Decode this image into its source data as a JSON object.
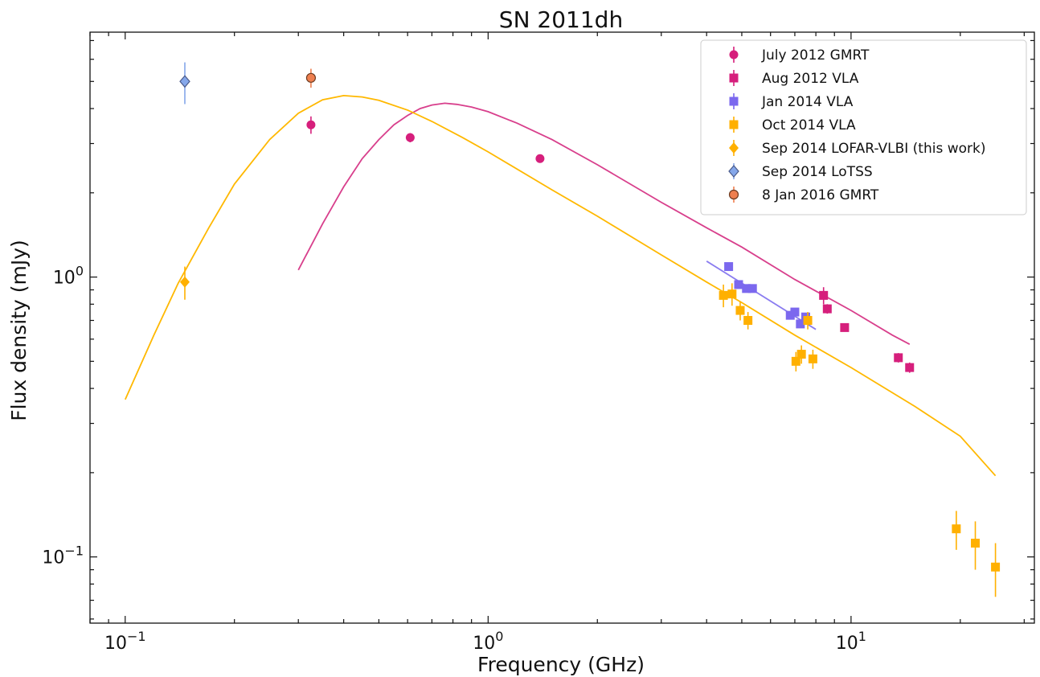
{
  "chart_data": {
    "type": "scatter",
    "title": "SN 2011dh",
    "xlabel": "Frequency (GHz)",
    "ylabel": "Flux density (mJy)",
    "xscale": "log",
    "yscale": "log",
    "xlim": [
      0.08,
      32
    ],
    "ylim": [
      0.058,
      7.5
    ],
    "x_ticks": [
      {
        "value": 0.1,
        "base": "10",
        "exp": "−1"
      },
      {
        "value": 1,
        "base": "10",
        "exp": "0"
      },
      {
        "value": 10,
        "base": "10",
        "exp": "1"
      }
    ],
    "y_ticks": [
      {
        "value": 0.1,
        "base": "10",
        "exp": "−1"
      },
      {
        "value": 1,
        "base": "10",
        "exp": "0"
      }
    ],
    "legend_position": "top-right",
    "series": [
      {
        "name": "July 2012 GMRT",
        "marker": "circle",
        "color": "#d61f7c",
        "points": [
          {
            "x": 0.325,
            "y": 3.5,
            "err": 0.25
          },
          {
            "x": 0.61,
            "y": 3.15,
            "err": 0.12
          },
          {
            "x": 1.39,
            "y": 2.65,
            "err": 0.08
          }
        ]
      },
      {
        "name": "Aug 2012 VLA",
        "marker": "square",
        "color": "#d61f7c",
        "points": [
          {
            "x": 8.4,
            "y": 0.86,
            "err": 0.06
          },
          {
            "x": 8.6,
            "y": 0.77,
            "err": 0.03
          },
          {
            "x": 9.6,
            "y": 0.66,
            "err": 0.02
          },
          {
            "x": 13.5,
            "y": 0.515,
            "err": 0.02
          },
          {
            "x": 14.5,
            "y": 0.475,
            "err": 0.02
          }
        ]
      },
      {
        "name": "Jan 2014 VLA",
        "marker": "square",
        "color": "#7b68ee",
        "points": [
          {
            "x": 4.6,
            "y": 1.09,
            "err": 0.02
          },
          {
            "x": 4.9,
            "y": 0.94,
            "err": 0.02
          },
          {
            "x": 5.15,
            "y": 0.91,
            "err": 0.02
          },
          {
            "x": 5.35,
            "y": 0.91,
            "err": 0.02
          },
          {
            "x": 6.8,
            "y": 0.73,
            "err": 0.02
          },
          {
            "x": 7.0,
            "y": 0.75,
            "err": 0.02
          },
          {
            "x": 7.25,
            "y": 0.68,
            "err": 0.02
          },
          {
            "x": 7.5,
            "y": 0.72,
            "err": 0.02
          }
        ]
      },
      {
        "name": "Oct 2014 VLA",
        "marker": "square",
        "color": "#ffb000",
        "points": [
          {
            "x": 4.45,
            "y": 0.86,
            "err": 0.08
          },
          {
            "x": 4.7,
            "y": 0.87,
            "err": 0.08
          },
          {
            "x": 4.95,
            "y": 0.76,
            "err": 0.06
          },
          {
            "x": 5.2,
            "y": 0.7,
            "err": 0.05
          },
          {
            "x": 7.05,
            "y": 0.5,
            "err": 0.04
          },
          {
            "x": 7.3,
            "y": 0.53,
            "err": 0.04
          },
          {
            "x": 7.6,
            "y": 0.7,
            "err": 0.05
          },
          {
            "x": 7.85,
            "y": 0.51,
            "err": 0.04
          },
          {
            "x": 19.5,
            "y": 0.126,
            "err": 0.02
          },
          {
            "x": 22.0,
            "y": 0.112,
            "err": 0.022
          },
          {
            "x": 25.0,
            "y": 0.092,
            "err": 0.02
          }
        ]
      },
      {
        "name": "Sep 2014 LOFAR-VLBI (this work)",
        "marker": "diamond",
        "color": "#ffb000",
        "points": [
          {
            "x": 0.146,
            "y": 0.96,
            "err": 0.13
          }
        ]
      },
      {
        "name": "Sep 2014 LoTSS",
        "marker": "diamond",
        "color": "#85a7ea",
        "stroke": "#4a5a8a",
        "points": [
          {
            "x": 0.146,
            "y": 5.0,
            "err": 0.85
          }
        ]
      },
      {
        "name": "8 Jan 2016 GMRT",
        "marker": "circle",
        "color": "#ee7f4f",
        "stroke": "#6b3a20",
        "points": [
          {
            "x": 0.325,
            "y": 5.15,
            "err": 0.4
          }
        ]
      }
    ],
    "model_curves": [
      {
        "color": "#d83f8c",
        "points": [
          [
            0.3,
            1.06
          ],
          [
            0.35,
            1.55
          ],
          [
            0.4,
            2.1
          ],
          [
            0.45,
            2.65
          ],
          [
            0.5,
            3.1
          ],
          [
            0.55,
            3.5
          ],
          [
            0.6,
            3.78
          ],
          [
            0.65,
            4.0
          ],
          [
            0.7,
            4.12
          ],
          [
            0.76,
            4.18
          ],
          [
            0.82,
            4.14
          ],
          [
            0.9,
            4.05
          ],
          [
            1.0,
            3.9
          ],
          [
            1.2,
            3.55
          ],
          [
            1.5,
            3.1
          ],
          [
            2.0,
            2.52
          ],
          [
            3.0,
            1.85
          ],
          [
            4.0,
            1.5
          ],
          [
            5.0,
            1.28
          ],
          [
            7.0,
            0.98
          ],
          [
            10.0,
            0.76
          ],
          [
            13.0,
            0.62
          ],
          [
            14.5,
            0.575
          ]
        ]
      },
      {
        "color": "#ffb800",
        "points": [
          [
            0.1,
            0.365
          ],
          [
            0.12,
            0.62
          ],
          [
            0.14,
            0.95
          ],
          [
            0.17,
            1.5
          ],
          [
            0.2,
            2.15
          ],
          [
            0.25,
            3.1
          ],
          [
            0.3,
            3.85
          ],
          [
            0.35,
            4.3
          ],
          [
            0.4,
            4.45
          ],
          [
            0.45,
            4.4
          ],
          [
            0.5,
            4.28
          ],
          [
            0.6,
            3.95
          ],
          [
            0.7,
            3.6
          ],
          [
            0.85,
            3.15
          ],
          [
            1.0,
            2.8
          ],
          [
            1.5,
            2.05
          ],
          [
            2.0,
            1.65
          ],
          [
            3.0,
            1.2
          ],
          [
            4.0,
            0.96
          ],
          [
            5.0,
            0.81
          ],
          [
            7.0,
            0.62
          ],
          [
            10.0,
            0.475
          ],
          [
            15.0,
            0.345
          ],
          [
            20.0,
            0.27
          ],
          [
            25.0,
            0.195
          ]
        ]
      },
      {
        "color": "#8a7cf0",
        "points": [
          [
            4.0,
            1.14
          ],
          [
            8.0,
            0.65
          ]
        ]
      }
    ]
  }
}
